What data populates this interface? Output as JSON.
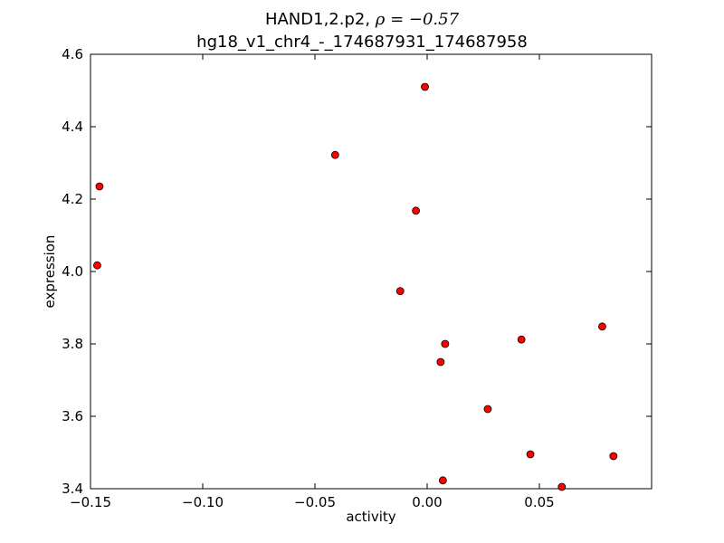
{
  "chart_data": {
    "type": "scatter",
    "title_gene": "HAND1,2.p2, ",
    "title_rho": "ρ = −0.57",
    "subtitle": "hg18_v1_chr4_-_174687931_174687958",
    "xlabel": "activity",
    "ylabel": "expression",
    "xlim": [
      -0.15,
      0.1
    ],
    "ylim": [
      3.4,
      4.6
    ],
    "xticks": [
      -0.15,
      -0.1,
      -0.05,
      0.0,
      0.05
    ],
    "xtick_labels": [
      "−0.15",
      "−0.10",
      "−0.05",
      "0.00",
      "0.05"
    ],
    "yticks": [
      3.4,
      3.6,
      3.8,
      4.0,
      4.2,
      4.4,
      4.6
    ],
    "ytick_labels": [
      "3.4",
      "3.6",
      "3.8",
      "4.0",
      "4.2",
      "4.4",
      "4.6"
    ],
    "grid": false,
    "marker_color": "#ff0000",
    "marker_edge": "#000000",
    "points": [
      {
        "x": -0.146,
        "y": 4.235
      },
      {
        "x": -0.147,
        "y": 4.017
      },
      {
        "x": -0.041,
        "y": 4.322
      },
      {
        "x": -0.001,
        "y": 4.51
      },
      {
        "x": -0.005,
        "y": 4.168
      },
      {
        "x": -0.012,
        "y": 3.946
      },
      {
        "x": 0.008,
        "y": 3.8
      },
      {
        "x": 0.006,
        "y": 3.75
      },
      {
        "x": 0.042,
        "y": 3.812
      },
      {
        "x": 0.078,
        "y": 3.848
      },
      {
        "x": 0.027,
        "y": 3.62
      },
      {
        "x": 0.046,
        "y": 3.495
      },
      {
        "x": 0.083,
        "y": 3.49
      },
      {
        "x": 0.007,
        "y": 3.423
      },
      {
        "x": 0.06,
        "y": 3.405
      }
    ]
  }
}
